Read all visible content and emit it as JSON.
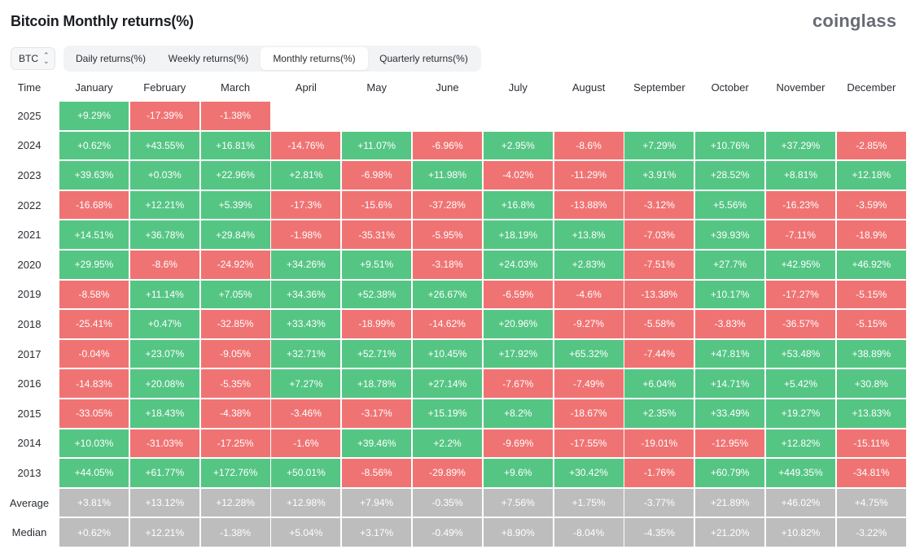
{
  "header": {
    "title": "Bitcoin Monthly returns(%)",
    "brand": "coinglass"
  },
  "colors": {
    "positive": "#55c584",
    "negative": "#f07373",
    "stat": "#bdbdbd"
  },
  "coin_select": {
    "value": "BTC",
    "icon": "chevron-updown-icon"
  },
  "tabs": [
    {
      "label": "Daily returns(%)",
      "active": false
    },
    {
      "label": "Weekly returns(%)",
      "active": false
    },
    {
      "label": "Monthly returns(%)",
      "active": true
    },
    {
      "label": "Quarterly returns(%)",
      "active": false
    }
  ],
  "table": {
    "first_column_header": "Time",
    "months": [
      "January",
      "February",
      "March",
      "April",
      "May",
      "June",
      "July",
      "August",
      "September",
      "October",
      "November",
      "December"
    ],
    "rows": [
      {
        "label": "2025",
        "values": [
          "+9.29%",
          "-17.39%",
          "-1.38%",
          "",
          "",
          "",
          "",
          "",
          "",
          "",
          "",
          ""
        ]
      },
      {
        "label": "2024",
        "values": [
          "+0.62%",
          "+43.55%",
          "+16.81%",
          "-14.76%",
          "+11.07%",
          "-6.96%",
          "+2.95%",
          "-8.6%",
          "+7.29%",
          "+10.76%",
          "+37.29%",
          "-2.85%"
        ]
      },
      {
        "label": "2023",
        "values": [
          "+39.63%",
          "+0.03%",
          "+22.96%",
          "+2.81%",
          "-6.98%",
          "+11.98%",
          "-4.02%",
          "-11.29%",
          "+3.91%",
          "+28.52%",
          "+8.81%",
          "+12.18%"
        ]
      },
      {
        "label": "2022",
        "values": [
          "-16.68%",
          "+12.21%",
          "+5.39%",
          "-17.3%",
          "-15.6%",
          "-37.28%",
          "+16.8%",
          "-13.88%",
          "-3.12%",
          "+5.56%",
          "-16.23%",
          "-3.59%"
        ]
      },
      {
        "label": "2021",
        "values": [
          "+14.51%",
          "+36.78%",
          "+29.84%",
          "-1.98%",
          "-35.31%",
          "-5.95%",
          "+18.19%",
          "+13.8%",
          "-7.03%",
          "+39.93%",
          "-7.11%",
          "-18.9%"
        ]
      },
      {
        "label": "2020",
        "values": [
          "+29.95%",
          "-8.6%",
          "-24.92%",
          "+34.26%",
          "+9.51%",
          "-3.18%",
          "+24.03%",
          "+2.83%",
          "-7.51%",
          "+27.7%",
          "+42.95%",
          "+46.92%"
        ]
      },
      {
        "label": "2019",
        "values": [
          "-8.58%",
          "+11.14%",
          "+7.05%",
          "+34.36%",
          "+52.38%",
          "+26.67%",
          "-6.59%",
          "-4.6%",
          "-13.38%",
          "+10.17%",
          "-17.27%",
          "-5.15%"
        ]
      },
      {
        "label": "2018",
        "values": [
          "-25.41%",
          "+0.47%",
          "-32.85%",
          "+33.43%",
          "-18.99%",
          "-14.62%",
          "+20.96%",
          "-9.27%",
          "-5.58%",
          "-3.83%",
          "-36.57%",
          "-5.15%"
        ]
      },
      {
        "label": "2017",
        "values": [
          "-0.04%",
          "+23.07%",
          "-9.05%",
          "+32.71%",
          "+52.71%",
          "+10.45%",
          "+17.92%",
          "+65.32%",
          "-7.44%",
          "+47.81%",
          "+53.48%",
          "+38.89%"
        ]
      },
      {
        "label": "2016",
        "values": [
          "-14.83%",
          "+20.08%",
          "-5.35%",
          "+7.27%",
          "+18.78%",
          "+27.14%",
          "-7.67%",
          "-7.49%",
          "+6.04%",
          "+14.71%",
          "+5.42%",
          "+30.8%"
        ]
      },
      {
        "label": "2015",
        "values": [
          "-33.05%",
          "+18.43%",
          "-4.38%",
          "-3.46%",
          "-3.17%",
          "+15.19%",
          "+8.2%",
          "-18.67%",
          "+2.35%",
          "+33.49%",
          "+19.27%",
          "+13.83%"
        ]
      },
      {
        "label": "2014",
        "values": [
          "+10.03%",
          "-31.03%",
          "-17.25%",
          "-1.6%",
          "+39.46%",
          "+2.2%",
          "-9.69%",
          "-17.55%",
          "-19.01%",
          "-12.95%",
          "+12.82%",
          "-15.11%"
        ]
      },
      {
        "label": "2013",
        "values": [
          "+44.05%",
          "+61.77%",
          "+172.76%",
          "+50.01%",
          "-8.56%",
          "-29.89%",
          "+9.6%",
          "+30.42%",
          "-1.76%",
          "+60.79%",
          "+449.35%",
          "-34.81%"
        ]
      }
    ],
    "stats": [
      {
        "label": "Average",
        "values": [
          "+3.81%",
          "+13.12%",
          "+12.28%",
          "+12.98%",
          "+7.94%",
          "-0.35%",
          "+7.56%",
          "+1.75%",
          "-3.77%",
          "+21.89%",
          "+46.02%",
          "+4.75%"
        ]
      },
      {
        "label": "Median",
        "values": [
          "+0.62%",
          "+12.21%",
          "-1.38%",
          "+5.04%",
          "+3.17%",
          "-0.49%",
          "+8.90%",
          "-8.04%",
          "-4.35%",
          "+21.20%",
          "+10.82%",
          "-3.22%"
        ]
      }
    ]
  }
}
